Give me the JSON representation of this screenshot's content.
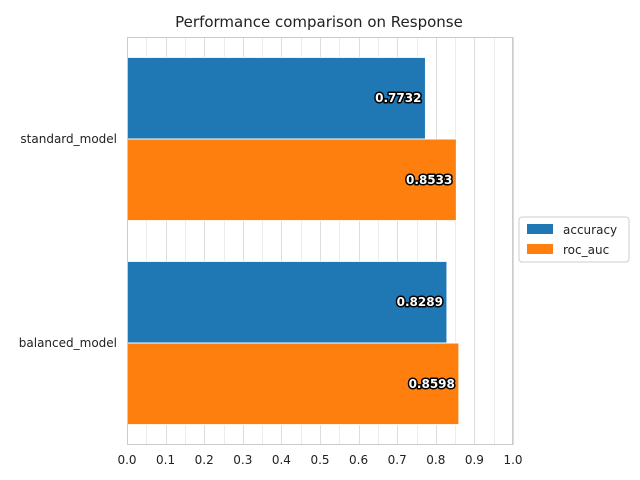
{
  "chart_data": {
    "type": "bar",
    "orientation": "horizontal",
    "title": "Performance comparison on Response",
    "xlabel": "",
    "ylabel": "",
    "categories": [
      "standard_model",
      "balanced_model"
    ],
    "series": [
      {
        "name": "accuracy",
        "values": [
          0.7732,
          0.8289
        ],
        "color": "#1f77b4"
      },
      {
        "name": "roc_auc",
        "values": [
          0.8533,
          0.8598
        ],
        "color": "#ff7f0e"
      }
    ],
    "data_labels": [
      [
        "0.7732",
        "0.8289"
      ],
      [
        "0.8533",
        "0.8598"
      ]
    ],
    "xlim": [
      0,
      1.0
    ],
    "x_ticks": [
      0.0,
      0.1,
      0.2,
      0.3,
      0.4,
      0.5,
      0.6,
      0.7,
      0.8,
      0.9,
      1.0
    ],
    "x_tick_labels": [
      "0.0",
      "0.1",
      "0.2",
      "0.3",
      "0.4",
      "0.5",
      "0.6",
      "0.7",
      "0.8",
      "0.9",
      "1.0"
    ],
    "grid": true,
    "legend_placement": "right"
  }
}
